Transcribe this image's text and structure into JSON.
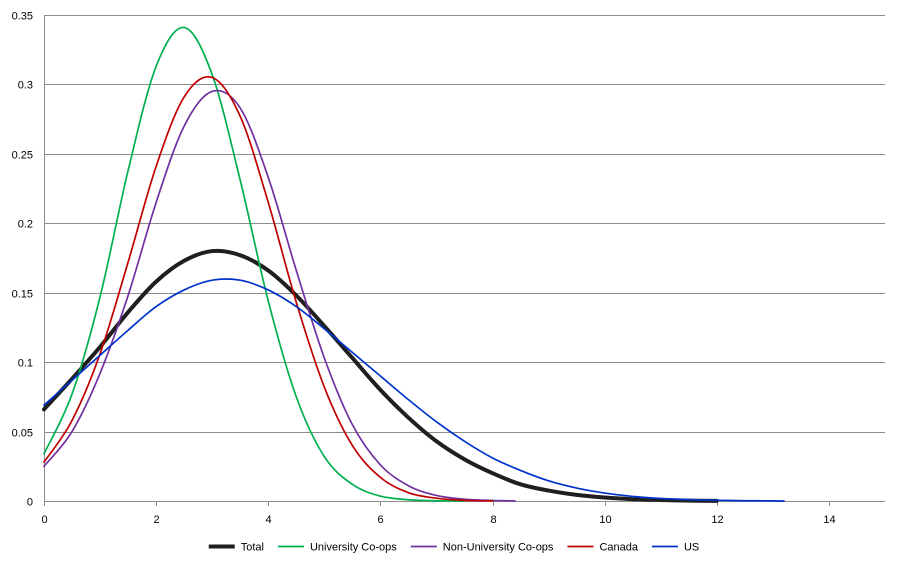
{
  "chart_data": {
    "type": "line",
    "title": "",
    "xlabel": "",
    "ylabel": "",
    "xlim": [
      0,
      15
    ],
    "ylim": [
      0,
      0.35
    ],
    "x_ticks": [
      0,
      2,
      4,
      6,
      8,
      10,
      12,
      14
    ],
    "x_tick_labels": [
      "0",
      "2",
      "4",
      "6",
      "8",
      "10",
      "12",
      "14"
    ],
    "y_ticks": [
      0,
      0.05,
      0.1,
      0.15,
      0.2,
      0.25,
      0.3,
      0.35
    ],
    "y_tick_labels": [
      "0",
      "0.05",
      "0.1",
      "0.15",
      "0.2",
      "0.25",
      "0.3",
      "0.35"
    ],
    "grid": "horizontal",
    "legend_position": "bottom",
    "series": [
      {
        "name": "Total",
        "color": "#1f1f1f",
        "width": 4,
        "x": [
          0,
          0.5,
          1,
          1.5,
          2,
          2.5,
          3,
          3.5,
          4,
          4.5,
          5,
          5.5,
          6,
          6.5,
          7,
          7.5,
          8,
          8.5,
          9,
          9.5,
          10,
          10.5,
          11,
          11.5,
          12
        ],
        "y": [
          0.066,
          0.088,
          0.111,
          0.136,
          0.158,
          0.173,
          0.18,
          0.177,
          0.166,
          0.148,
          0.126,
          0.103,
          0.08,
          0.06,
          0.043,
          0.03,
          0.02,
          0.012,
          0.0075,
          0.0044,
          0.0025,
          0.0013,
          0.0007,
          0.0003,
          0.0001
        ]
      },
      {
        "name": "University Co-ops",
        "color": "#00b050",
        "width": 1.7,
        "x": [
          0,
          0.5,
          1,
          1.5,
          2,
          2.5,
          3,
          3.5,
          4,
          4.5,
          5,
          5.5,
          6,
          6.5,
          7,
          7.5
        ],
        "y": [
          0.034,
          0.077,
          0.147,
          0.238,
          0.313,
          0.341,
          0.307,
          0.231,
          0.144,
          0.075,
          0.032,
          0.012,
          0.0035,
          0.0009,
          0.0002,
          0
        ]
      },
      {
        "name": "Non-University Co-ops",
        "color": "#7030a0",
        "width": 1.7,
        "x": [
          0,
          0.5,
          1,
          1.5,
          2,
          2.5,
          3,
          3.5,
          4,
          4.5,
          5,
          5.5,
          6,
          6.5,
          7,
          7.5,
          8,
          8.4
        ],
        "y": [
          0.025,
          0.05,
          0.092,
          0.148,
          0.215,
          0.27,
          0.295,
          0.283,
          0.233,
          0.166,
          0.103,
          0.055,
          0.026,
          0.011,
          0.004,
          0.0013,
          0.0004,
          0.0001
        ]
      },
      {
        "name": "Canada",
        "color": "#c00000",
        "width": 1.7,
        "x": [
          0,
          0.5,
          1,
          1.5,
          2,
          2.5,
          3,
          3.5,
          4,
          4.5,
          5,
          5.5,
          6,
          6.5,
          7,
          7.5,
          8
        ],
        "y": [
          0.028,
          0.058,
          0.106,
          0.172,
          0.241,
          0.291,
          0.305,
          0.277,
          0.215,
          0.143,
          0.082,
          0.04,
          0.017,
          0.006,
          0.002,
          0.0005,
          0.0001
        ]
      },
      {
        "name": "US",
        "color": "#0033cc",
        "width": 1.7,
        "x": [
          0,
          0.5,
          1,
          1.5,
          2,
          2.5,
          3,
          3.5,
          4,
          4.5,
          5,
          5.5,
          6,
          6.5,
          7,
          7.5,
          8,
          8.5,
          9,
          9.5,
          10,
          10.5,
          11,
          11.5,
          12,
          12.5,
          13,
          13.2
        ],
        "y": [
          0.069,
          0.087,
          0.105,
          0.123,
          0.14,
          0.152,
          0.159,
          0.159,
          0.152,
          0.14,
          0.124,
          0.107,
          0.09,
          0.073,
          0.057,
          0.043,
          0.031,
          0.022,
          0.0145,
          0.0093,
          0.0057,
          0.0033,
          0.0018,
          0.001,
          0.0005,
          0.0002,
          0.0001,
          0
        ]
      }
    ]
  }
}
